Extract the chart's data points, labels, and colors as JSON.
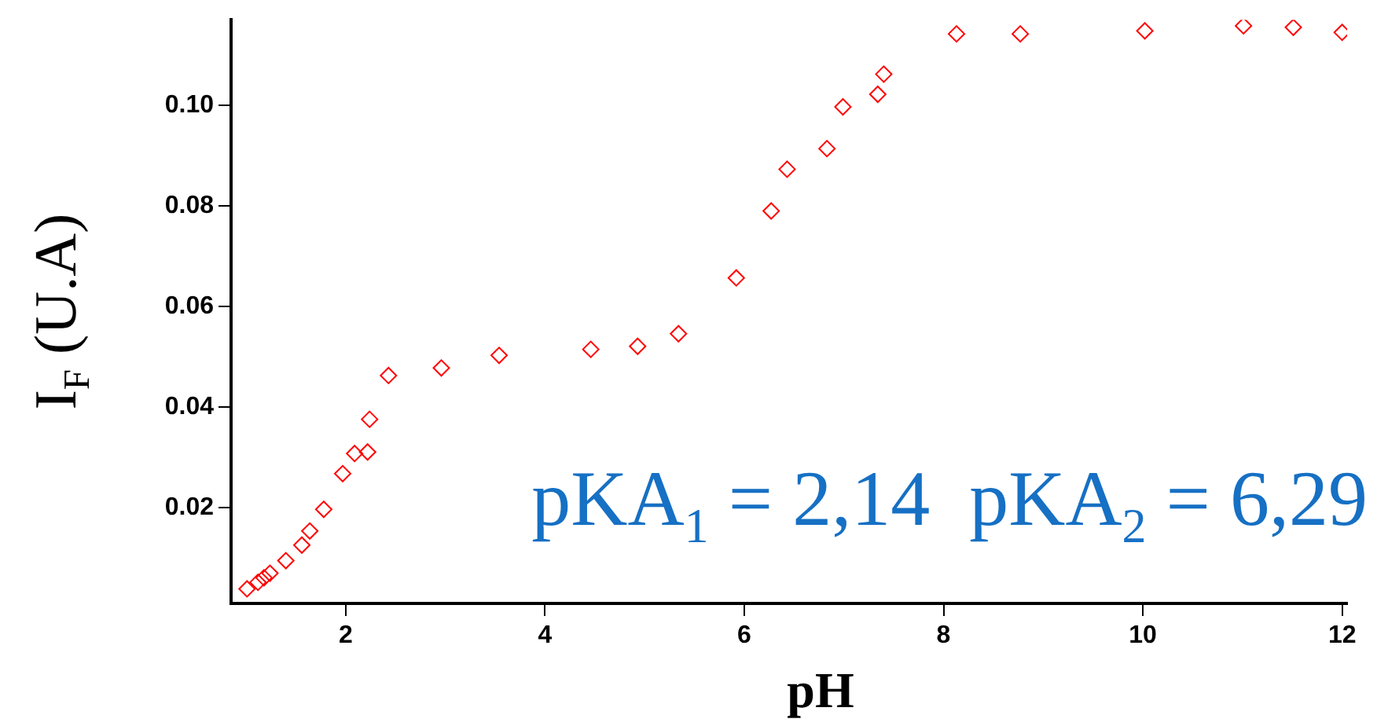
{
  "chart_data": {
    "type": "scatter",
    "xlabel": "pH",
    "ylabel": "I$_{F}$ (U.A)",
    "marker": "diamond",
    "annotations": [
      "pKA$_{1}$ = 2,14  pKA$_{2}$ = 6,29"
    ],
    "x": [
      1.01,
      1.12,
      1.18,
      1.24,
      1.4,
      1.56,
      1.64,
      1.78,
      1.97,
      2.09,
      2.22,
      2.24,
      2.43,
      2.96,
      3.54,
      4.46,
      4.93,
      5.34,
      5.92,
      6.27,
      6.43,
      6.83,
      6.99,
      7.34,
      7.4,
      8.13,
      8.77,
      10.02,
      11.01,
      11.51,
      12.0
    ],
    "series": [
      {
        "color": "#ff0000",
        "values": [
          0.0039,
          0.0052,
          0.0061,
          0.007,
          0.0095,
          0.0126,
          0.0154,
          0.0197,
          0.0268,
          0.0308,
          0.0311,
          0.0376,
          0.0463,
          0.0478,
          0.0503,
          0.0515,
          0.0521,
          0.0546,
          0.0657,
          0.079,
          0.0873,
          0.0914,
          0.0997,
          0.1022,
          0.1062,
          0.1142,
          0.1142,
          0.1148,
          0.1158,
          0.1155,
          0.1145
        ]
      }
    ],
    "xlim": [
      0.85,
      12.05
    ],
    "xticks": [
      2,
      4,
      6,
      8,
      10,
      12
    ],
    "ylim": [
      0.001,
      0.117
    ],
    "yticks": [
      0.02,
      0.04,
      0.06,
      {
        "value": 0.1,
        "label": "0.10"
      },
      {
        "value": 0.08,
        "label": "0.08"
      }
    ]
  }
}
